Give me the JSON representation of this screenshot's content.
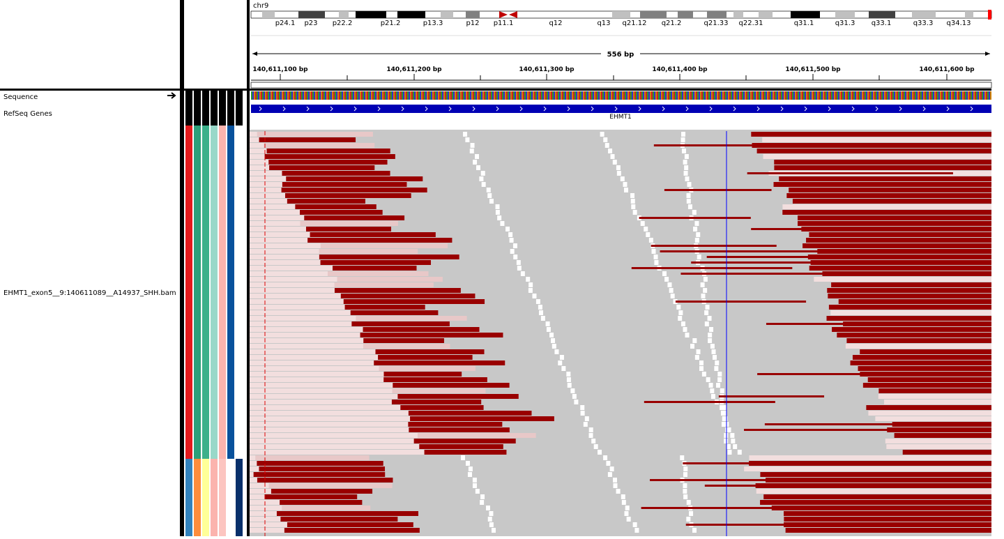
{
  "header": {
    "chromosome": "chr9",
    "cytobands": [
      "p24.1",
      "p23",
      "p22.2",
      "p21.2",
      "p13.3",
      "p12",
      "p11.1",
      "q12",
      "q13",
      "q21.12",
      "q21.2",
      "q21.33",
      "q22.31",
      "q31.1",
      "q31.3",
      "q33.1",
      "q33.3",
      "q34.13"
    ],
    "span": "556 bp",
    "ruler_ticks": [
      "140,611,100 bp",
      "140,611,200 bp",
      "140,611,300 bp",
      "140,611,400 bp",
      "140,611,500 bp",
      "140,611,600 bp"
    ]
  },
  "tracks": {
    "sequence": "Sequence",
    "refseq": "RefSeq Genes",
    "gene": "EHMT1",
    "bam": "EHMT1_exon5__9:140611089__A14937_SHH.bam"
  }
}
